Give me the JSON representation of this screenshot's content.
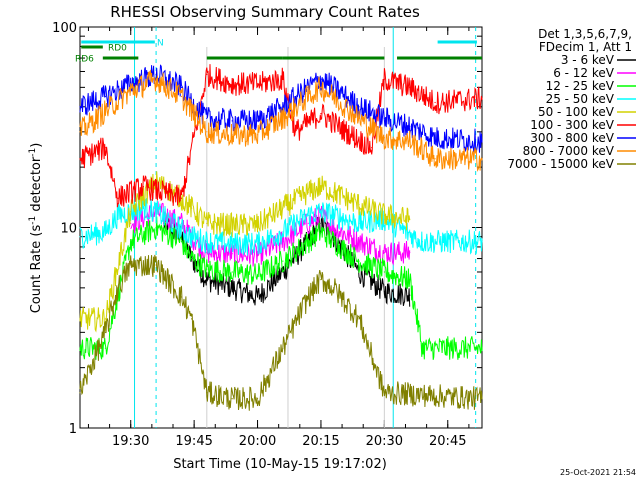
{
  "chart_data": {
    "type": "line",
    "title": "RHESSI Observing Summary Count Rates",
    "xlabel": "Start Time (10-May-15 19:17:02)",
    "ylabel_main": "Count Rate (s",
    "ylabel_sup": "-1",
    "ylabel_tail": " detector",
    "ylabel_sup2": "-1",
    "ylabel_end": ")",
    "y_scale": "log",
    "ylim": [
      1,
      100
    ],
    "xlim": [
      19.3,
      20.885
    ],
    "y_ticks": [
      {
        "value": 1,
        "label": "1"
      },
      {
        "value": 10,
        "label": "10"
      },
      {
        "value": 100,
        "label": "100"
      }
    ],
    "x_ticks": [
      {
        "value": 19.5,
        "label": "19:30"
      },
      {
        "value": 19.75,
        "label": "19:45"
      },
      {
        "value": 20.0,
        "label": "20:00"
      },
      {
        "value": 20.25,
        "label": "20:15"
      },
      {
        "value": 20.5,
        "label": "20:30"
      },
      {
        "value": 20.75,
        "label": "20:45"
      }
    ],
    "legend_header": [
      "Det 1,3,5,6,7,9,",
      "FDecim 1, Att 1"
    ],
    "legend_placement": "right",
    "timestamp": "25-Oct-2021 21:54",
    "flags": [
      {
        "label": "N",
        "color": "#00e5ee",
        "segments": [
          [
            19.305,
            19.595
          ],
          [
            20.71,
            20.865
          ]
        ]
      },
      {
        "label": "RD0",
        "color": "#008000",
        "segments": [
          [
            19.305,
            19.39
          ]
        ]
      },
      {
        "label": "RD6",
        "color": "#008000",
        "segments": [
          [
            19.39,
            19.53
          ],
          [
            19.8,
            20.1
          ],
          [
            20.1,
            20.5
          ],
          [
            20.55,
            20.885
          ]
        ]
      }
    ],
    "saa_lines": [
      19.515,
      20.535
    ],
    "night_dashes": [
      19.6,
      20.86
    ],
    "gap_lines": [
      19.8,
      20.12,
      20.5
    ],
    "series": [
      {
        "name": "3 - 6 keV",
        "color": "#000000",
        "points": [
          [
            19.63,
            10.5
          ],
          [
            19.7,
            9.0
          ],
          [
            19.74,
            7.0
          ],
          [
            19.8,
            5.5
          ],
          [
            19.9,
            5.0
          ],
          [
            20.0,
            4.5
          ],
          [
            20.1,
            6.0
          ],
          [
            20.2,
            8.5
          ],
          [
            20.25,
            10.5
          ],
          [
            20.3,
            9.0
          ],
          [
            20.4,
            6.0
          ],
          [
            20.5,
            4.8
          ],
          [
            20.6,
            4.6
          ]
        ]
      },
      {
        "name": "6 - 12 keV",
        "color": "#ff00ff",
        "points": [
          [
            19.5,
            10.5
          ],
          [
            19.6,
            12.0
          ],
          [
            19.7,
            10.5
          ],
          [
            19.74,
            9.0
          ],
          [
            19.8,
            7.5
          ],
          [
            19.9,
            7.4
          ],
          [
            20.0,
            7.3
          ],
          [
            20.1,
            8.5
          ],
          [
            20.2,
            10.5
          ],
          [
            20.25,
            11.5
          ],
          [
            20.3,
            10.0
          ],
          [
            20.4,
            8.5
          ],
          [
            20.5,
            7.5
          ],
          [
            20.6,
            7.5
          ]
        ]
      },
      {
        "name": "12 - 25 keV",
        "color": "#00ff00",
        "points": [
          [
            19.3,
            2.5
          ],
          [
            19.4,
            2.5
          ],
          [
            19.5,
            8.5
          ],
          [
            19.6,
            10.0
          ],
          [
            19.7,
            8.5
          ],
          [
            19.74,
            7.0
          ],
          [
            19.8,
            6.2
          ],
          [
            19.9,
            6.0
          ],
          [
            20.0,
            5.8
          ],
          [
            20.1,
            6.8
          ],
          [
            20.2,
            8.5
          ],
          [
            20.25,
            9.5
          ],
          [
            20.3,
            8.5
          ],
          [
            20.4,
            6.8
          ],
          [
            20.5,
            6.0
          ],
          [
            20.6,
            5.5
          ],
          [
            20.65,
            2.5
          ],
          [
            20.885,
            2.5
          ]
        ]
      },
      {
        "name": "25 - 50 keV",
        "color": "#00ffff",
        "points": [
          [
            19.3,
            9.0
          ],
          [
            19.4,
            9.5
          ],
          [
            19.45,
            11.5
          ],
          [
            19.55,
            12.5
          ],
          [
            19.6,
            12.0
          ],
          [
            19.74,
            9.0
          ],
          [
            19.8,
            8.5
          ],
          [
            19.9,
            8.3
          ],
          [
            20.0,
            8.3
          ],
          [
            20.1,
            9.5
          ],
          [
            20.2,
            11.5
          ],
          [
            20.25,
            12.0
          ],
          [
            20.3,
            11.5
          ],
          [
            20.4,
            10.5
          ],
          [
            20.5,
            11.0
          ],
          [
            20.65,
            8.5
          ],
          [
            20.885,
            8.5
          ]
        ]
      },
      {
        "name": "50 - 100 keV",
        "color": "#d2d200",
        "points": [
          [
            19.3,
            3.5
          ],
          [
            19.4,
            3.5
          ],
          [
            19.5,
            12.0
          ],
          [
            19.6,
            17.0
          ],
          [
            19.7,
            14.0
          ],
          [
            19.74,
            12.5
          ],
          [
            19.8,
            10.5
          ],
          [
            19.9,
            10.3
          ],
          [
            20.0,
            10.3
          ],
          [
            20.1,
            12.5
          ],
          [
            20.2,
            15.0
          ],
          [
            20.25,
            16.0
          ],
          [
            20.3,
            15.0
          ],
          [
            20.4,
            13.0
          ],
          [
            20.5,
            11.5
          ],
          [
            20.6,
            11.0
          ]
        ]
      },
      {
        "name": "100 - 300 keV",
        "color": "#ff0000",
        "points": [
          [
            19.3,
            22.0
          ],
          [
            19.4,
            25.0
          ],
          [
            19.45,
            14.0
          ],
          [
            19.55,
            16.0
          ],
          [
            19.7,
            14.0
          ],
          [
            19.8,
            58.0
          ],
          [
            19.9,
            52.0
          ],
          [
            20.0,
            52.0
          ],
          [
            20.1,
            55.0
          ],
          [
            20.15,
            30.0
          ],
          [
            20.25,
            37.0
          ],
          [
            20.35,
            30.0
          ],
          [
            20.45,
            25.0
          ],
          [
            20.5,
            55.0
          ],
          [
            20.6,
            50.0
          ],
          [
            20.7,
            42.0
          ],
          [
            20.885,
            44.0
          ]
        ]
      },
      {
        "name": "300 - 800 keV",
        "color": "#0000ff",
        "points": [
          [
            19.3,
            40.0
          ],
          [
            19.4,
            45.0
          ],
          [
            19.5,
            52.0
          ],
          [
            19.6,
            58.0
          ],
          [
            19.7,
            50.0
          ],
          [
            19.74,
            42.0
          ],
          [
            19.8,
            35.0
          ],
          [
            19.9,
            34.0
          ],
          [
            20.0,
            34.0
          ],
          [
            20.1,
            40.0
          ],
          [
            20.2,
            50.0
          ],
          [
            20.25,
            55.0
          ],
          [
            20.3,
            50.0
          ],
          [
            20.4,
            40.0
          ],
          [
            20.5,
            35.0
          ],
          [
            20.6,
            32.0
          ],
          [
            20.7,
            28.0
          ],
          [
            20.885,
            27.0
          ]
        ]
      },
      {
        "name": "800 - 7000 keV",
        "color": "#ff8c00",
        "points": [
          [
            19.3,
            30.0
          ],
          [
            19.4,
            38.0
          ],
          [
            19.5,
            48.0
          ],
          [
            19.6,
            55.0
          ],
          [
            19.7,
            45.0
          ],
          [
            19.74,
            38.0
          ],
          [
            19.8,
            30.0
          ],
          [
            19.9,
            29.0
          ],
          [
            20.0,
            29.0
          ],
          [
            20.1,
            35.0
          ],
          [
            20.2,
            45.0
          ],
          [
            20.25,
            50.0
          ],
          [
            20.3,
            45.0
          ],
          [
            20.4,
            35.0
          ],
          [
            20.5,
            28.0
          ],
          [
            20.6,
            27.0
          ],
          [
            20.7,
            22.0
          ],
          [
            20.885,
            22.0
          ]
        ]
      },
      {
        "name": "7000 - 15000 keV",
        "color": "#808000",
        "points": [
          [
            19.3,
            1.5
          ],
          [
            19.4,
            3.0
          ],
          [
            19.45,
            5.0
          ],
          [
            19.5,
            6.5
          ],
          [
            19.6,
            6.5
          ],
          [
            19.7,
            4.5
          ],
          [
            19.74,
            3.5
          ],
          [
            19.8,
            1.5
          ],
          [
            19.9,
            1.4
          ],
          [
            20.0,
            1.4
          ],
          [
            20.1,
            2.5
          ],
          [
            20.2,
            4.5
          ],
          [
            20.25,
            5.5
          ],
          [
            20.3,
            5.0
          ],
          [
            20.4,
            3.5
          ],
          [
            20.5,
            1.5
          ],
          [
            20.885,
            1.4
          ]
        ]
      }
    ]
  }
}
